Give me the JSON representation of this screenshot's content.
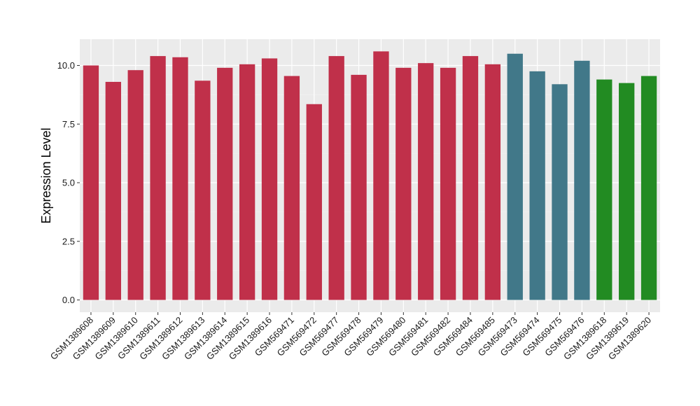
{
  "chart_data": {
    "type": "bar",
    "title": "",
    "xlabel": "",
    "ylabel": "Expression Level",
    "ylim": [
      0,
      11
    ],
    "yticks": [
      "0.0",
      "2.5",
      "5.0",
      "7.5",
      "10.0"
    ],
    "ytick_values": [
      0,
      2.5,
      5,
      7.5,
      10
    ],
    "grid": true,
    "legend": "none",
    "panel_background": "#ebebeb",
    "categories": [
      "GSM1389608",
      "GSM1389609",
      "GSM1389610",
      "GSM1389611",
      "GSM1389612",
      "GSM1389613",
      "GSM1389614",
      "GSM1389615",
      "GSM1389616",
      "GSM569471",
      "GSM569472",
      "GSM569477",
      "GSM569478",
      "GSM569479",
      "GSM569480",
      "GSM569481",
      "GSM569482",
      "GSM569484",
      "GSM569485",
      "GSM569473",
      "GSM569474",
      "GSM569475",
      "GSM569476",
      "GSM1389618",
      "GSM1389619",
      "GSM1389620"
    ],
    "values": [
      10.0,
      9.3,
      9.8,
      10.4,
      10.35,
      9.35,
      9.9,
      10.05,
      10.3,
      9.55,
      8.35,
      10.4,
      9.6,
      10.6,
      9.9,
      10.1,
      9.9,
      10.4,
      10.05,
      10.5,
      9.75,
      9.2,
      10.2,
      9.4,
      9.25,
      9.55
    ],
    "colors": [
      "#c0304a",
      "#c0304a",
      "#c0304a",
      "#c0304a",
      "#c0304a",
      "#c0304a",
      "#c0304a",
      "#c0304a",
      "#c0304a",
      "#c0304a",
      "#c0304a",
      "#c0304a",
      "#c0304a",
      "#c0304a",
      "#c0304a",
      "#c0304a",
      "#c0304a",
      "#c0304a",
      "#c0304a",
      "#417889",
      "#417889",
      "#417889",
      "#417889",
      "#228b22",
      "#228b22",
      "#228b22"
    ]
  }
}
